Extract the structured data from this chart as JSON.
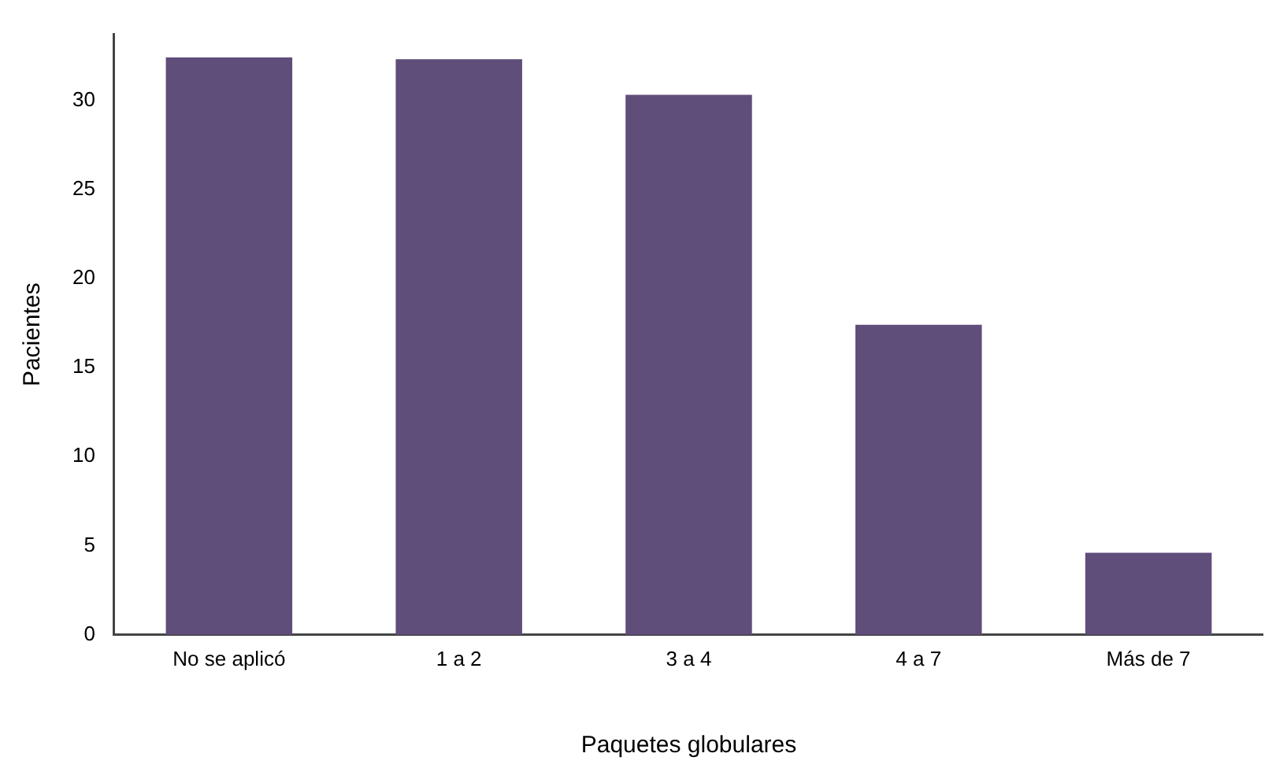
{
  "chart_data": {
    "type": "bar",
    "xlabel": "Paquetes globulares",
    "ylabel": "Pacientes",
    "categories": [
      "No se aplicó",
      "1 a 2",
      "3 a 4",
      "4 a 7",
      "Más de 7"
    ],
    "values": [
      32.4,
      32.3,
      30.3,
      17.4,
      4.6
    ],
    "color": "#5f4d7a",
    "ylim": [
      0,
      33.7
    ],
    "yticks": [
      0,
      5,
      10,
      15,
      20,
      25,
      30
    ],
    "grid": false,
    "legend": false
  }
}
